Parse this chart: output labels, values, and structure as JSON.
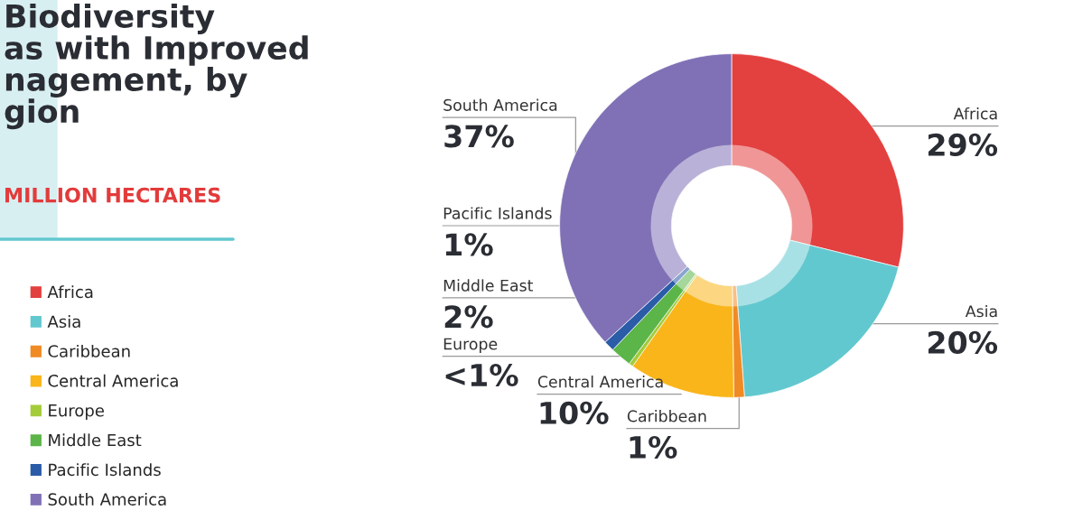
{
  "chart_data": {
    "type": "donut",
    "title": "Biodiversity\nas with Improved\nnagement, by\ngion",
    "subtitle": "MILLION HECTARES",
    "categories": [
      "Africa",
      "Asia",
      "Caribbean",
      "Central America",
      "Europe",
      "Middle East",
      "Pacific Islands",
      "South America"
    ],
    "values": [
      29,
      20,
      1,
      10,
      0.4,
      2,
      1,
      37
    ],
    "colors": [
      "#e34040",
      "#62c8cf",
      "#f08a24",
      "#f9b51a",
      "#a4cc3a",
      "#5cb548",
      "#2a5ca8",
      "#8071b6"
    ],
    "value_labels": [
      "29%",
      "20%",
      "1%",
      "10%",
      "<1%",
      "2%",
      "1%",
      "37%"
    ],
    "legend": "left"
  }
}
